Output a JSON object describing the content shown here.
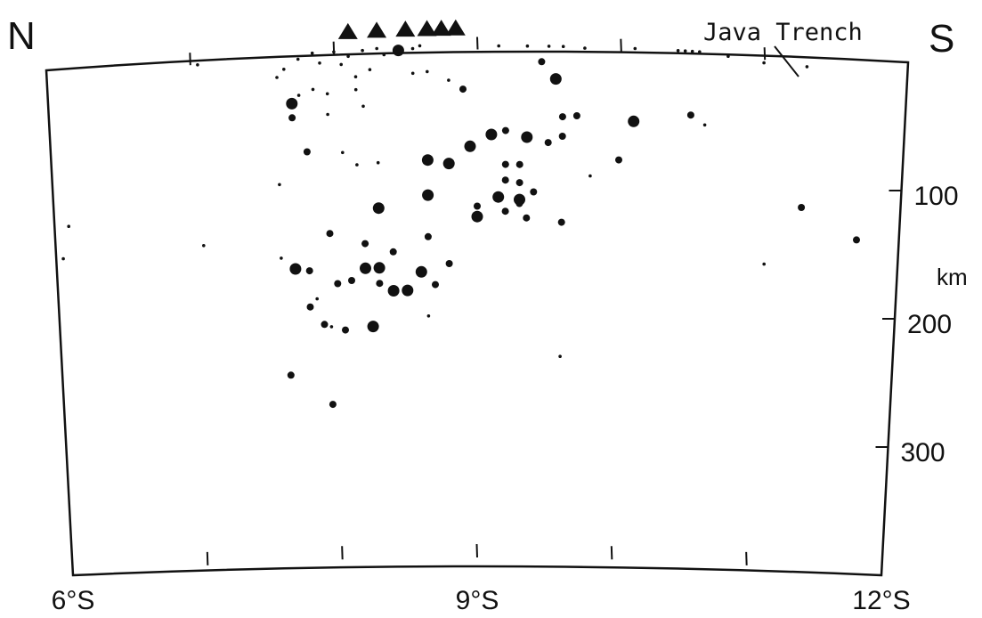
{
  "chart_data": {
    "type": "scatter",
    "title": "",
    "direction_labels": {
      "left": "N",
      "right": "S"
    },
    "annotation": "Java Trench",
    "x_axis": {
      "range": [
        6,
        12
      ],
      "ticks": [
        6,
        7,
        8,
        9,
        10,
        11,
        12
      ],
      "tick_labels": [
        {
          "value": 6,
          "text": "6°S"
        },
        {
          "value": 9,
          "text": "9°S"
        },
        {
          "value": 12,
          "text": "12°S"
        }
      ]
    },
    "y_axis": {
      "range": [
        0,
        400
      ],
      "inverted": true,
      "unit_label": "km",
      "ticks": [
        0,
        100,
        200,
        300
      ],
      "tick_labels": [
        {
          "value": 100,
          "text": "100"
        },
        {
          "value": 200,
          "text": "200"
        },
        {
          "value": 300,
          "text": "300"
        }
      ]
    },
    "volcanoes": [
      8.1,
      8.3,
      8.5,
      8.65,
      8.75,
      8.85
    ],
    "trench_latitude": 10.6,
    "grid": false,
    "legend": "none",
    "series": [
      {
        "marker": "large-dot",
        "points": [
          [
            8.45,
            9
          ],
          [
            9.55,
            32
          ],
          [
            7.7,
            46
          ],
          [
            10.1,
            63
          ],
          [
            9.35,
            77
          ],
          [
            8.95,
            84
          ],
          [
            9.1,
            75
          ],
          [
            8.65,
            94
          ],
          [
            8.8,
            97
          ],
          [
            8.65,
            121
          ],
          [
            8.3,
            130
          ],
          [
            9.15,
            123
          ],
          [
            9.3,
            125
          ],
          [
            9.0,
            138
          ],
          [
            7.7,
            174
          ],
          [
            8.2,
            176
          ],
          [
            8.3,
            176
          ],
          [
            8.6,
            180
          ],
          [
            8.4,
            194
          ],
          [
            8.5,
            194
          ],
          [
            8.25,
            221
          ]
        ]
      },
      {
        "marker": "medium-dot",
        "points": [
          [
            9.45,
            19
          ],
          [
            8.9,
            40
          ],
          [
            9.6,
            61
          ],
          [
            10.5,
            56
          ],
          [
            9.6,
            76
          ],
          [
            9.2,
            72
          ],
          [
            9.5,
            81
          ],
          [
            9.2,
            98
          ],
          [
            9.3,
            98
          ],
          [
            10.0,
            93
          ],
          [
            9.2,
            110
          ],
          [
            9.3,
            112
          ],
          [
            9.4,
            119
          ],
          [
            9.3,
            128
          ],
          [
            9.0,
            130
          ],
          [
            9.2,
            134
          ],
          [
            9.35,
            139
          ],
          [
            7.7,
            57
          ],
          [
            7.8,
            84
          ],
          [
            7.95,
            148
          ],
          [
            8.2,
            157
          ],
          [
            8.4,
            164
          ],
          [
            8.65,
            153
          ],
          [
            8.8,
            174
          ],
          [
            7.7,
            173
          ],
          [
            7.8,
            176
          ],
          [
            8.0,
            187
          ],
          [
            8.1,
            185
          ],
          [
            8.3,
            188
          ],
          [
            8.5,
            195
          ],
          [
            8.7,
            190
          ],
          [
            7.8,
            204
          ],
          [
            7.9,
            218
          ],
          [
            8.05,
            223
          ],
          [
            7.65,
            256
          ],
          [
            7.95,
            280
          ],
          [
            11.3,
            121
          ],
          [
            11.7,
            142
          ],
          [
            9.6,
            142
          ],
          [
            9.7,
            60
          ]
        ]
      },
      {
        "marker": "small-dot",
        "points": [
          [
            7.05,
            10
          ],
          [
            7.6,
            25
          ],
          [
            7.65,
            19
          ],
          [
            7.75,
            12
          ],
          [
            7.85,
            8
          ],
          [
            7.9,
            16
          ],
          [
            8.0,
            8
          ],
          [
            8.05,
            18
          ],
          [
            8.1,
            12
          ],
          [
            8.15,
            28
          ],
          [
            8.2,
            8
          ],
          [
            8.25,
            23
          ],
          [
            8.3,
            7
          ],
          [
            8.35,
            12
          ],
          [
            8.45,
            9
          ],
          [
            8.55,
            8
          ],
          [
            8.6,
            6
          ],
          [
            7.75,
            40
          ],
          [
            7.85,
            36
          ],
          [
            7.95,
            40
          ],
          [
            8.15,
            38
          ],
          [
            8.2,
            51
          ],
          [
            7.95,
            56
          ],
          [
            8.05,
            86
          ],
          [
            8.15,
            96
          ],
          [
            8.3,
            95
          ],
          [
            8.55,
            27
          ],
          [
            8.65,
            26
          ],
          [
            8.8,
            33
          ],
          [
            9.15,
            7
          ],
          [
            9.35,
            7
          ],
          [
            9.5,
            7
          ],
          [
            9.6,
            7
          ],
          [
            9.75,
            8
          ],
          [
            10.1,
            7
          ],
          [
            10.4,
            7
          ],
          [
            10.45,
            7
          ],
          [
            10.5,
            7
          ],
          [
            10.55,
            7
          ],
          [
            10.75,
            9
          ],
          [
            11.0,
            12
          ],
          [
            11.3,
            12
          ],
          [
            9.8,
            106
          ],
          [
            7.6,
            108
          ],
          [
            6.1,
            125
          ],
          [
            6.05,
            150
          ],
          [
            7.05,
            151
          ],
          [
            10.6,
            63
          ],
          [
            7.6,
            165
          ],
          [
            7.85,
            198
          ],
          [
            7.95,
            220
          ],
          [
            8.65,
            214
          ],
          [
            9.6,
            245
          ],
          [
            11.05,
            167
          ]
        ]
      }
    ]
  }
}
